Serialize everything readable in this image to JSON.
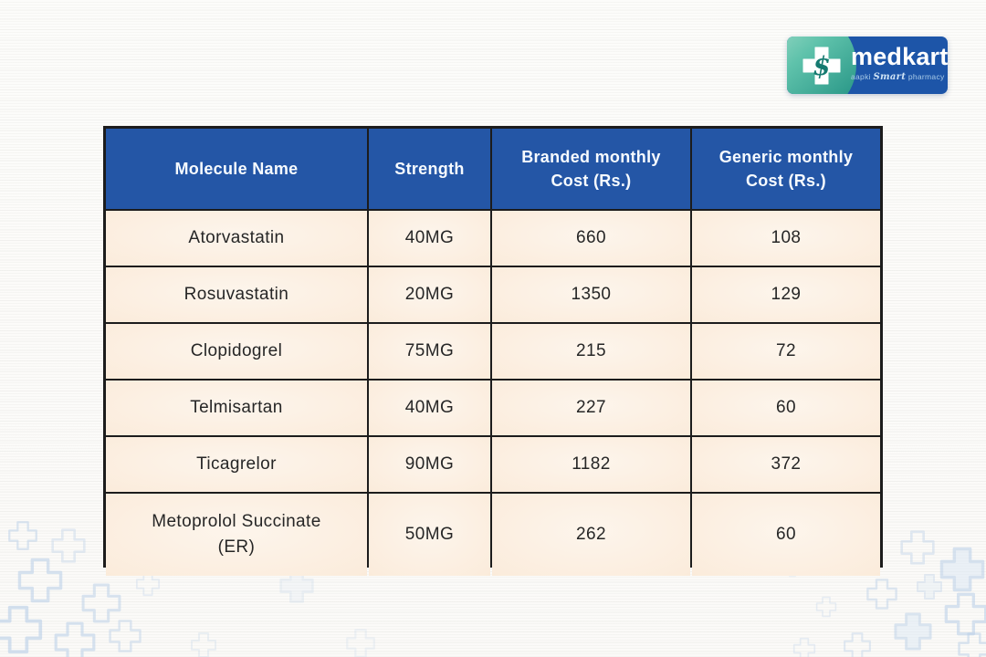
{
  "logo": {
    "brand": "medkart",
    "tagline_pre": "aapki",
    "tagline_script": "Smart",
    "tagline_post": "pharmacy",
    "cross_icon_glyph": "$"
  },
  "table": {
    "headers": [
      "Molecule Name",
      "Strength",
      "Branded monthly Cost (Rs.)",
      "Generic monthly Cost (Rs.)"
    ],
    "rows": [
      [
        "Atorvastatin",
        "40MG",
        "660",
        "108"
      ],
      [
        "Rosuvastatin",
        "20MG",
        "1350",
        "129"
      ],
      [
        "Clopidogrel",
        "75MG",
        "215",
        "72"
      ],
      [
        "Telmisartan",
        "40MG",
        "227",
        "60"
      ],
      [
        "Ticagrelor",
        "90MG",
        "1182",
        "372"
      ],
      [
        "Metoprolol Succinate (ER)",
        "50MG",
        "262",
        "60"
      ]
    ]
  },
  "chart_data": {
    "type": "table",
    "title": "Branded vs Generic monthly cost comparison",
    "columns": [
      "Molecule Name",
      "Strength",
      "Branded monthly Cost (Rs.)",
      "Generic monthly Cost (Rs.)"
    ],
    "rows": [
      {
        "molecule": "Atorvastatin",
        "strength": "40MG",
        "branded_monthly_cost_rs": 660,
        "generic_monthly_cost_rs": 108
      },
      {
        "molecule": "Rosuvastatin",
        "strength": "20MG",
        "branded_monthly_cost_rs": 1350,
        "generic_monthly_cost_rs": 129
      },
      {
        "molecule": "Clopidogrel",
        "strength": "75MG",
        "branded_monthly_cost_rs": 215,
        "generic_monthly_cost_rs": 72
      },
      {
        "molecule": "Telmisartan",
        "strength": "40MG",
        "branded_monthly_cost_rs": 227,
        "generic_monthly_cost_rs": 60
      },
      {
        "molecule": "Ticagrelor",
        "strength": "90MG",
        "branded_monthly_cost_rs": 1182,
        "generic_monthly_cost_rs": 372
      },
      {
        "molecule": "Metoprolol Succinate (ER)",
        "strength": "50MG",
        "branded_monthly_cost_rs": 262,
        "generic_monthly_cost_rs": 60
      }
    ]
  },
  "colors": {
    "header_bg": "#2456a6",
    "header_text": "#f7fbff",
    "cell_bg_center": "#fdf5ec",
    "cell_bg_edge": "#f5dcc3",
    "table_border": "#1c1c1c",
    "logo_blue": "#1d55a8",
    "logo_teal": "#2d9a8a",
    "cross_decor_outline": "#b9cfe8",
    "cross_decor_fill": "#dde9f5"
  }
}
